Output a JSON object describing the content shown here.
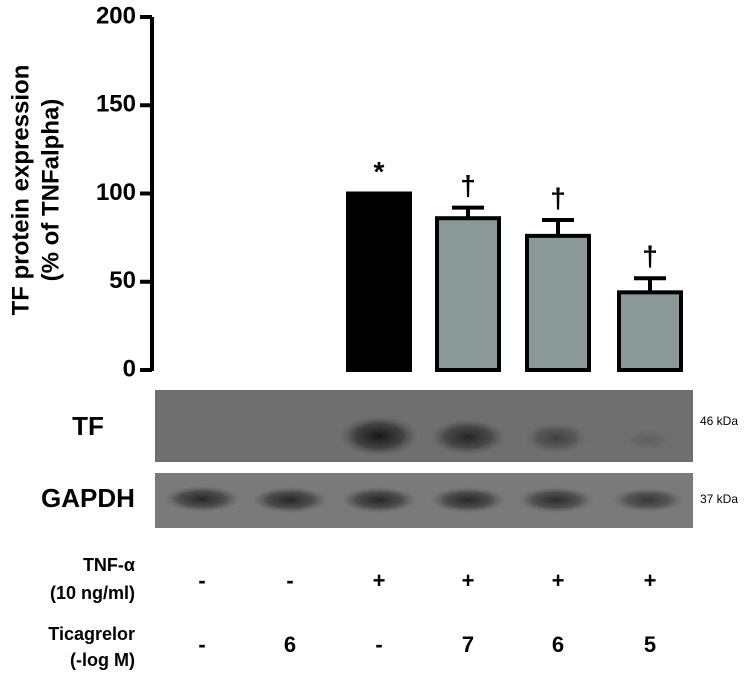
{
  "chart_data": {
    "type": "bar",
    "ylabel": [
      "TF protein expression",
      "(% of TNFalpha)"
    ],
    "categories": [
      null,
      null,
      null,
      null,
      null,
      null
    ],
    "values": [
      0,
      0,
      100,
      86,
      76,
      44
    ],
    "errors": [
      null,
      null,
      null,
      6,
      9,
      8
    ],
    "colors": [
      "#8a9898",
      "#8a9898",
      "#000000",
      "#8a9898",
      "#8a9898",
      "#8a9898"
    ],
    "annotations": [
      null,
      null,
      "*",
      "†",
      "†",
      "†"
    ],
    "ylim": [
      0,
      200
    ],
    "yticks": [
      0,
      50,
      100,
      150,
      200
    ],
    "blots": [
      {
        "label": "TF",
        "size": "46 kDa"
      },
      {
        "label": "GAPDH",
        "size": "37 kDa"
      }
    ],
    "conditions": [
      {
        "label": "TNF-α",
        "unit": "(10 ng/ml)",
        "values": [
          "-",
          "-",
          "+",
          "+",
          "+",
          "+"
        ]
      },
      {
        "label": "Ticagrelor",
        "unit": "(-log M)",
        "values": [
          "-",
          "6",
          "-",
          "7",
          "6",
          "5"
        ]
      }
    ]
  }
}
